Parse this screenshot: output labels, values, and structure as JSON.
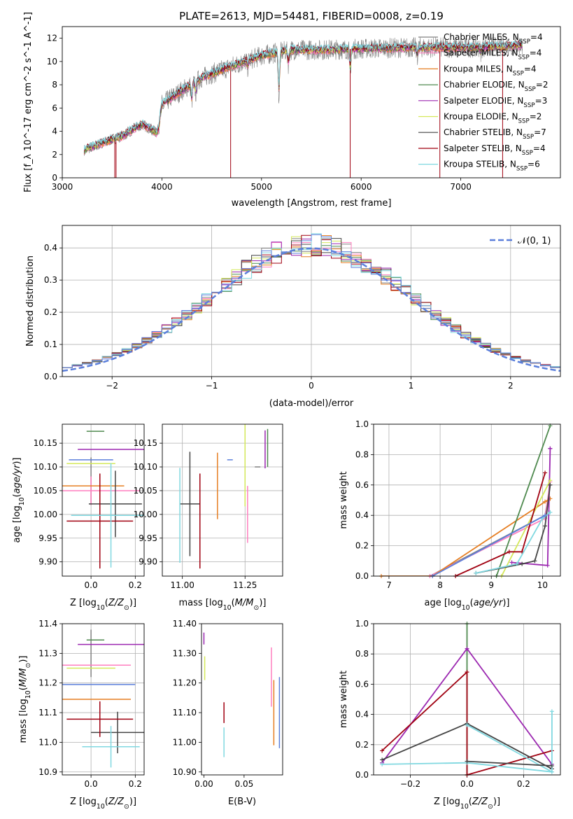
{
  "figure": {
    "title": "PLATE=2613, MJD=54481, FIBERID=0008, z=0.19"
  },
  "colors": {
    "chabrier_miles": "#808080",
    "salpeter_miles": "#ff7fbf",
    "kroupa_miles": "#e67e22",
    "chabrier_elodie": "#4f8a4f",
    "salpeter_elodie": "#9b27b0",
    "kroupa_elodie": "#d4e85a",
    "chabrier_stelib": "#444444",
    "salpeter_stelib": "#a00010",
    "kroupa_stelib": "#80d8e0",
    "blue": "#5b7fdb"
  },
  "chart_data": [
    {
      "id": "spectrum",
      "type": "line",
      "xlabel": "wavelength [Angstrom, rest frame]",
      "ylabel": "Flux [f_λ 10^-17 erg cm^-2 s^-1 A^-1]",
      "xlim": [
        3000,
        8000
      ],
      "ylim": [
        0,
        13
      ],
      "xticks": [
        3000,
        4000,
        5000,
        6000,
        7000
      ],
      "yticks": [
        0,
        2,
        4,
        6,
        8,
        10,
        12
      ],
      "grid": false,
      "legend_position": "right",
      "legend": [
        {
          "label": "Chabrier MILES, N",
          "sub": "SSP",
          "count": "=4",
          "color": "#808080"
        },
        {
          "label": "Salpeter MILES, N",
          "sub": "SSP",
          "count": "=4",
          "color": "#ff7fbf"
        },
        {
          "label": "Kroupa MILES, N",
          "sub": "SSP",
          "count": "=4",
          "color": "#e67e22"
        },
        {
          "label": "Chabrier ELODIE, N",
          "sub": "SSP",
          "count": "=2",
          "color": "#4f8a4f"
        },
        {
          "label": "Salpeter ELODIE, N",
          "sub": "SSP",
          "count": "=3",
          "color": "#9b27b0"
        },
        {
          "label": "Kroupa ELODIE, N",
          "sub": "SSP",
          "count": "=2",
          "color": "#d4e85a"
        },
        {
          "label": "Chabrier STELIB, N",
          "sub": "SSP",
          "count": "=7",
          "color": "#444444"
        },
        {
          "label": "Salpeter STELIB, N",
          "sub": "SSP",
          "count": "=4",
          "color": "#a00010"
        },
        {
          "label": "Kroupa STELIB, N",
          "sub": "SSP",
          "count": "=6",
          "color": "#80d8e0"
        }
      ],
      "continuum": [
        [
          3220,
          2.4
        ],
        [
          3400,
          3.0
        ],
        [
          3600,
          3.6
        ],
        [
          3800,
          4.6
        ],
        [
          3950,
          3.9
        ],
        [
          4000,
          6.3
        ],
        [
          4200,
          7.5
        ],
        [
          4400,
          8.6
        ],
        [
          4700,
          9.6
        ],
        [
          5000,
          10.5
        ],
        [
          5300,
          11.0
        ],
        [
          5600,
          11.0
        ],
        [
          6000,
          11.1
        ],
        [
          6500,
          11.2
        ],
        [
          7000,
          11.2
        ],
        [
          7400,
          11.3
        ],
        [
          7600,
          11.4
        ]
      ],
      "absorption": [
        [
          3934,
          4.0
        ],
        [
          3969,
          4.2
        ],
        [
          4102,
          7.0
        ],
        [
          4300,
          6.6
        ],
        [
          4340,
          7.2
        ],
        [
          4861,
          9.5
        ],
        [
          5175,
          7.0
        ],
        [
          5270,
          9.8
        ],
        [
          5890,
          9.2
        ],
        [
          6563,
          10.5
        ],
        [
          7200,
          10.8
        ]
      ],
      "spikes": [
        [
          3527,
          0
        ],
        [
          3540,
          0
        ],
        [
          4690,
          0
        ],
        [
          5890,
          0
        ],
        [
          6790,
          0
        ],
        [
          7420,
          0
        ]
      ]
    },
    {
      "id": "residuals",
      "type": "histogram",
      "xlabel": "(data-model)/error",
      "ylabel": "Normed distribution",
      "xlim": [
        -2.5,
        2.5
      ],
      "ylim": [
        0,
        0.47
      ],
      "xticks": [
        -2,
        -1,
        0,
        1,
        2
      ],
      "yticks": [
        0,
        0.1,
        0.2,
        0.3,
        0.4
      ],
      "grid": true,
      "legend_position": "top-right",
      "reference_label": "N(0,1)",
      "bin_width": 0.1
    },
    {
      "id": "age_vs_Z",
      "type": "errorbar",
      "xlabel": "Z [log10(Z/Z⊙)]",
      "ylabel": "age [log10(age/yr)]",
      "xlim": [
        -0.13,
        0.24
      ],
      "ylim": [
        9.87,
        10.19
      ],
      "xticks": [
        0.0,
        0.2
      ],
      "yticks": [
        9.9,
        9.95,
        10.0,
        10.05,
        10.1,
        10.15
      ],
      "grid": true,
      "points": [
        {
          "series": "chabrier_miles",
          "x": 0.0,
          "xerr": 0.0,
          "y": 10.07,
          "yerr": 0.05
        },
        {
          "series": "salpeter_miles",
          "x": 0.0,
          "xerr": 0.22,
          "y": 10.05,
          "yerr": 0.03
        },
        {
          "series": "kroupa_miles",
          "x": -0.03,
          "xerr": 0.18,
          "y": 10.06,
          "yerr": 0.0
        },
        {
          "series": "chabrier_elodie",
          "x": 0.02,
          "xerr": 0.04,
          "y": 10.175,
          "yerr": 0.0
        },
        {
          "series": "salpeter_elodie",
          "x": 0.09,
          "xerr": 0.15,
          "y": 10.137,
          "yerr": 0.0
        },
        {
          "series": "kroupa_elodie",
          "x": 0.0,
          "xerr": 0.11,
          "y": 10.107,
          "yerr": 0.0
        },
        {
          "series": "chabrier_stelib",
          "x": 0.11,
          "xerr": 0.12,
          "y": 10.022,
          "yerr": 0.07
        },
        {
          "series": "salpeter_stelib",
          "x": 0.04,
          "xerr": 0.15,
          "y": 9.986,
          "yerr": 0.1
        },
        {
          "series": "kroupa_stelib",
          "x": 0.09,
          "xerr": 0.18,
          "y": 9.998,
          "yerr": 0.11
        },
        {
          "series": "blue",
          "x": 0.0,
          "xerr": 0.1,
          "y": 10.115,
          "yerr": 0.0
        }
      ]
    },
    {
      "id": "age_vs_mass",
      "type": "errorbar",
      "xlabel": "mass [log10(M/M⊙)]",
      "ylabel": "",
      "xlim": [
        10.92,
        11.4
      ],
      "ylim": [
        9.87,
        10.19
      ],
      "xticks": [
        11.0,
        11.25
      ],
      "yticks": [
        9.9,
        9.95,
        10.0,
        10.05,
        10.1,
        10.15
      ],
      "grid": true,
      "points": [
        {
          "series": "chabrier_miles",
          "x": 11.3,
          "xerr": 0.0,
          "y": 10.1,
          "yerr": 0.0
        },
        {
          "series": "salpeter_miles",
          "x": 11.26,
          "xerr": 0.0,
          "y": 10.0,
          "yerr": 0.06
        },
        {
          "series": "kroupa_miles",
          "x": 11.14,
          "xerr": 0.0,
          "y": 10.06,
          "yerr": 0.07
        },
        {
          "series": "chabrier_elodie",
          "x": 11.34,
          "xerr": 0.0,
          "y": 10.14,
          "yerr": 0.04
        },
        {
          "series": "salpeter_elodie",
          "x": 11.33,
          "xerr": 0.0,
          "y": 10.137,
          "yerr": 0.04
        },
        {
          "series": "kroupa_elodie",
          "x": 11.25,
          "xerr": 0.0,
          "y": 10.107,
          "yerr": 0.09
        },
        {
          "series": "chabrier_stelib",
          "x": 11.03,
          "xerr": 0.04,
          "y": 10.022,
          "yerr": 0.11
        },
        {
          "series": "salpeter_stelib",
          "x": 11.07,
          "xerr": 0.0,
          "y": 9.986,
          "yerr": 0.1
        },
        {
          "series": "kroupa_stelib",
          "x": 10.99,
          "xerr": 0.0,
          "y": 9.998,
          "yerr": 0.1
        },
        {
          "series": "blue",
          "x": 11.19,
          "xerr": 0.0,
          "y": 10.115,
          "yerr": 0.0
        }
      ]
    },
    {
      "id": "mass_weight_vs_age",
      "type": "line",
      "xlabel": "age  [log10(age/yr)]",
      "ylabel": "mass weight",
      "xlim": [
        6.7,
        10.35
      ],
      "ylim": [
        0.0,
        1.0
      ],
      "xticks": [
        7,
        8,
        9,
        10
      ],
      "yticks": [
        0.0,
        0.2,
        0.4,
        0.6,
        0.8,
        1.0
      ],
      "grid": true,
      "series": [
        {
          "name": "chabrier_miles",
          "x": [
            7.8,
            10.05,
            10.15
          ],
          "y": [
            0.0,
            0.4,
            0.6
          ]
        },
        {
          "name": "salpeter_miles",
          "x": [
            7.8,
            10.05,
            10.15
          ],
          "y": [
            0.0,
            0.38,
            0.62
          ]
        },
        {
          "name": "kroupa_miles",
          "x": [
            6.85,
            7.85,
            10.05,
            10.15
          ],
          "y": [
            0.0,
            0.0,
            0.49,
            0.51
          ]
        },
        {
          "name": "chabrier_elodie",
          "x": [
            9.1,
            10.15
          ],
          "y": [
            0.0,
            0.99
          ]
        },
        {
          "name": "salpeter_elodie",
          "x": [
            9.4,
            10.1,
            10.15,
            10.15
          ],
          "y": [
            0.09,
            0.07,
            0.84,
            0.84
          ]
        },
        {
          "name": "kroupa_elodie",
          "x": [
            9.2,
            10.15
          ],
          "y": [
            0.0,
            0.63
          ]
        },
        {
          "name": "chabrier_stelib",
          "x": [
            8.7,
            9.6,
            9.85,
            10.05,
            10.15
          ],
          "y": [
            0.02,
            0.08,
            0.1,
            0.33,
            0.6
          ]
        },
        {
          "name": "salpeter_stelib",
          "x": [
            8.3,
            9.35,
            9.6,
            10.05
          ],
          "y": [
            0.0,
            0.16,
            0.16,
            0.68
          ]
        },
        {
          "name": "kroupa_stelib",
          "x": [
            8.7,
            9.5,
            10.0,
            10.15
          ],
          "y": [
            0.02,
            0.08,
            0.38,
            0.42
          ]
        },
        {
          "name": "blue",
          "x": [
            7.85,
            10.05
          ],
          "y": [
            0.0,
            0.4
          ]
        }
      ]
    },
    {
      "id": "mass_vs_Z",
      "type": "errorbar",
      "xlabel": "Z [log10(Z/Z⊙)]",
      "ylabel": "mass [log10(M/M⊙)]",
      "xlim": [
        -0.13,
        0.24
      ],
      "ylim": [
        10.89,
        11.4
      ],
      "xticks": [
        0.0,
        0.2
      ],
      "yticks": [
        10.9,
        11.0,
        11.1,
        11.2,
        11.3,
        11.4
      ],
      "grid": true,
      "points": [
        {
          "series": "chabrier_miles",
          "x": 0.0,
          "xerr": 0.0,
          "y": 11.3,
          "yerr": 0.08
        },
        {
          "series": "salpeter_miles",
          "x": 0.0,
          "xerr": 0.18,
          "y": 11.26,
          "yerr": 0.0
        },
        {
          "series": "kroupa_miles",
          "x": 0.0,
          "xerr": 0.18,
          "y": 11.145,
          "yerr": 0.0
        },
        {
          "series": "chabrier_elodie",
          "x": 0.02,
          "xerr": 0.04,
          "y": 11.345,
          "yerr": 0.0
        },
        {
          "series": "salpeter_elodie",
          "x": 0.09,
          "xerr": 0.15,
          "y": 11.33,
          "yerr": 0.0
        },
        {
          "series": "kroupa_elodie",
          "x": 0.0,
          "xerr": 0.11,
          "y": 11.25,
          "yerr": 0.0
        },
        {
          "series": "chabrier_stelib",
          "x": 0.12,
          "xerr": 0.12,
          "y": 11.033,
          "yerr": 0.07
        },
        {
          "series": "salpeter_stelib",
          "x": 0.04,
          "xerr": 0.15,
          "y": 11.078,
          "yerr": 0.06
        },
        {
          "series": "kroupa_stelib",
          "x": 0.09,
          "xerr": 0.13,
          "y": 10.985,
          "yerr": 0.07
        },
        {
          "series": "blue",
          "x": 0.0,
          "xerr": 0.2,
          "y": 11.195,
          "yerr": 0.0
        }
      ]
    },
    {
      "id": "mass_vs_ebv",
      "type": "errorbar",
      "xlabel": "E(B-V)",
      "ylabel": "",
      "xlim": [
        -0.003,
        0.098
      ],
      "ylim": [
        10.89,
        11.4
      ],
      "xticks": [
        0.0,
        0.05
      ],
      "yticks": [
        10.9,
        11.0,
        11.1,
        11.2,
        11.3,
        11.4
      ],
      "grid": false,
      "points": [
        {
          "series": "kroupa_elodie",
          "x": 0.001,
          "xerr": 0.0,
          "y": 11.25,
          "yerr": 0.04
        },
        {
          "series": "salpeter_elodie",
          "x": 0.0,
          "xerr": 0.0,
          "y": 11.35,
          "yerr": 0.02
        },
        {
          "series": "salpeter_stelib",
          "x": 0.025,
          "xerr": 0.0,
          "y": 11.1,
          "yerr": 0.035
        },
        {
          "series": "kroupa_stelib",
          "x": 0.025,
          "xerr": 0.0,
          "y": 11.0,
          "yerr": 0.05
        },
        {
          "series": "salpeter_miles",
          "x": 0.084,
          "xerr": 0.0,
          "y": 11.22,
          "yerr": 0.1
        },
        {
          "series": "kroupa_miles",
          "x": 0.087,
          "xerr": 0.0,
          "y": 11.1,
          "yerr": 0.11
        },
        {
          "series": "blue",
          "x": 0.094,
          "xerr": 0.0,
          "y": 11.1,
          "yerr": 0.12
        }
      ]
    },
    {
      "id": "mass_weight_vs_Z",
      "type": "line",
      "xlabel": "Z [log10(Z/Z⊙)]",
      "ylabel": "mass weight",
      "xlim": [
        -0.33,
        0.33
      ],
      "ylim": [
        0.0,
        1.0
      ],
      "xticks": [
        -0.2,
        0.0,
        0.2
      ],
      "yticks": [
        0.0,
        0.2,
        0.4,
        0.6,
        0.8,
        1.0
      ],
      "grid": true,
      "series": [
        {
          "name": "chabrier_elodie",
          "x": [
            0.0,
            0.0
          ],
          "y": [
            0.0,
            1.0
          ]
        },
        {
          "name": "salpeter_elodie",
          "x": [
            -0.3,
            0.0,
            0.3
          ],
          "y": [
            0.08,
            0.835,
            0.07
          ]
        },
        {
          "name": "salpeter_stelib",
          "x": [
            -0.3,
            0.0,
            0.0,
            0.3
          ],
          "y": [
            0.16,
            0.68,
            0.0,
            0.16
          ]
        },
        {
          "name": "chabrier_stelib",
          "x": [
            -0.3,
            0.0,
            0.3
          ],
          "y": [
            0.1,
            0.34,
            0.04
          ]
        },
        {
          "name": "kroupa_stelib",
          "x": [
            -0.3,
            0.0,
            0.3,
            0.3
          ],
          "y": [
            0.07,
            0.08,
            0.02,
            0.42
          ]
        },
        {
          "name": "kroupa_stelib",
          "x": [
            0.0,
            0.3
          ],
          "y": [
            0.33,
            0.02
          ]
        },
        {
          "name": "chabrier_stelib",
          "x": [
            0.0,
            0.3
          ],
          "y": [
            0.09,
            0.06
          ]
        }
      ]
    }
  ]
}
